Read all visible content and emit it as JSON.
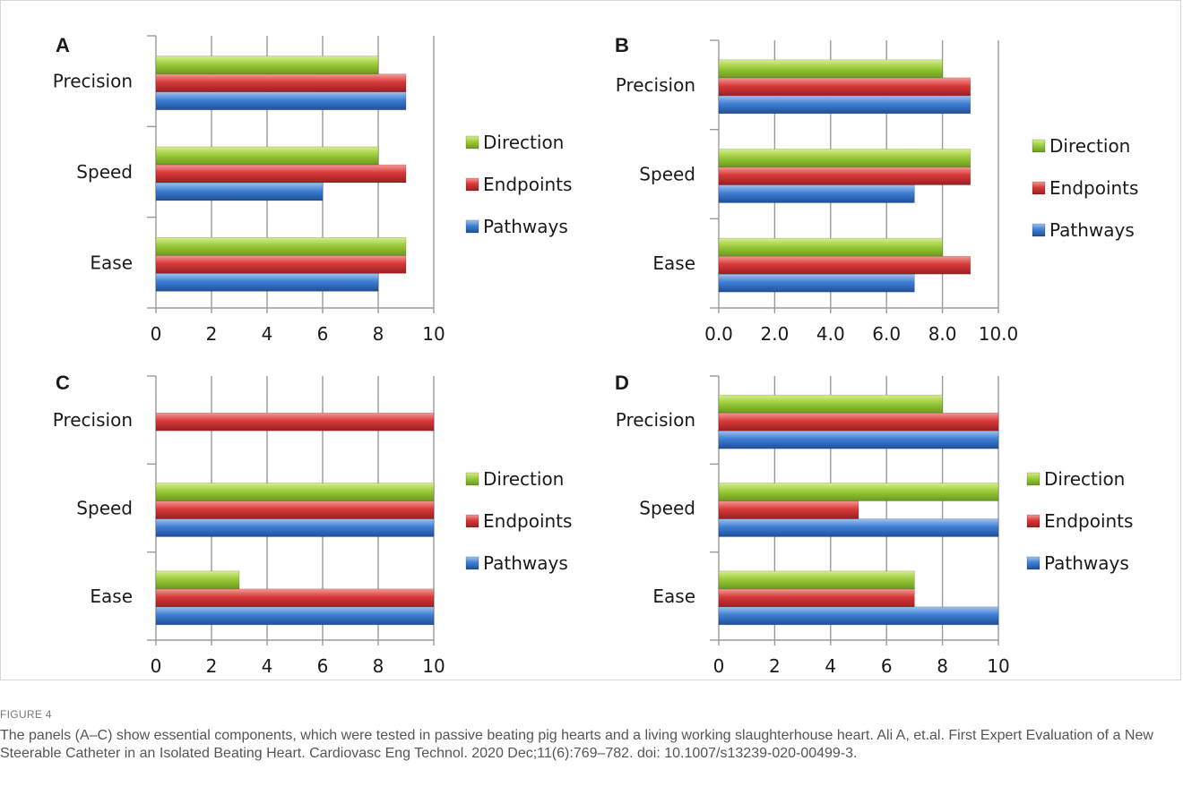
{
  "figure": {
    "label": "FIGURE 4",
    "caption": "The panels (A–C) show essential components, which were tested in passive beating pig hearts and a living working slaughterhouse heart. Ali A, et.al. First Expert Evaluation of a New Steerable Catheter in an Isolated Beating Heart. Cardiovasc Eng Technol. 2020 Dec;11(6):769–782. doi: 10.1007/s13239-020-00499-3."
  },
  "colors": {
    "Direction": "#9ccb3b",
    "Endpoints": "#d9393a",
    "Pathways": "#3f7fd3"
  },
  "chart_data": [
    {
      "panel": "A",
      "type": "bar",
      "orientation": "horizontal",
      "categories": [
        "Precision",
        "Speed",
        "Ease"
      ],
      "series": [
        {
          "name": "Direction",
          "values": [
            8,
            8,
            9
          ]
        },
        {
          "name": "Endpoints",
          "values": [
            9,
            9,
            9
          ]
        },
        {
          "name": "Pathways",
          "values": [
            9,
            6,
            8
          ]
        }
      ],
      "xlim": [
        0,
        10
      ],
      "xticks": [
        "0",
        "2",
        "4",
        "6",
        "8",
        "10"
      ],
      "grid": true,
      "legend": "right"
    },
    {
      "panel": "B",
      "type": "bar",
      "orientation": "horizontal",
      "categories": [
        "Precision",
        "Speed",
        "Ease"
      ],
      "series": [
        {
          "name": "Direction",
          "values": [
            8,
            9,
            8
          ]
        },
        {
          "name": "Endpoints",
          "values": [
            9,
            9,
            9
          ]
        },
        {
          "name": "Pathways",
          "values": [
            9,
            7,
            7
          ]
        }
      ],
      "xlim": [
        0,
        10
      ],
      "xticks": [
        "0.0",
        "2.0",
        "4.0",
        "6.0",
        "8.0",
        "10.0"
      ],
      "grid": true,
      "legend": "right"
    },
    {
      "panel": "C",
      "type": "bar",
      "orientation": "horizontal",
      "categories": [
        "Precision",
        "Speed",
        "Ease"
      ],
      "series": [
        {
          "name": "Direction",
          "values": [
            0,
            10,
            3
          ]
        },
        {
          "name": "Endpoints",
          "values": [
            10,
            10,
            10
          ]
        },
        {
          "name": "Pathways",
          "values": [
            0,
            10,
            10
          ]
        }
      ],
      "xlim": [
        0,
        10
      ],
      "xticks": [
        "0",
        "2",
        "4",
        "6",
        "8",
        "10"
      ],
      "grid": true,
      "legend": "right"
    },
    {
      "panel": "D",
      "type": "bar",
      "orientation": "horizontal",
      "categories": [
        "Precision",
        "Speed",
        "Ease"
      ],
      "series": [
        {
          "name": "Direction",
          "values": [
            8,
            10,
            7
          ]
        },
        {
          "name": "Endpoints",
          "values": [
            10,
            5,
            7
          ]
        },
        {
          "name": "Pathways",
          "values": [
            10,
            10,
            10
          ]
        }
      ],
      "xlim": [
        0,
        10
      ],
      "xticks": [
        "0",
        "2",
        "4",
        "6",
        "8",
        "10"
      ],
      "grid": true,
      "legend": "right"
    }
  ]
}
